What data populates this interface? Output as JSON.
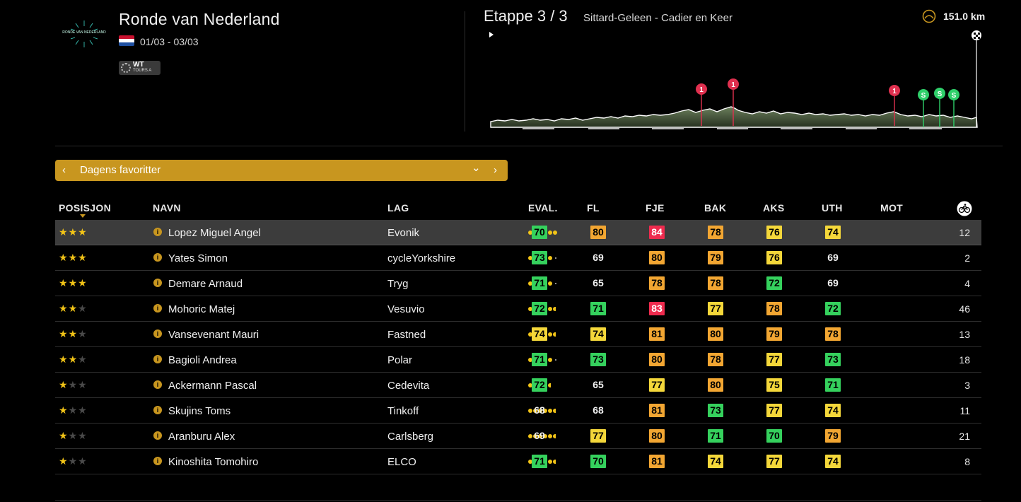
{
  "header": {
    "race_title": "Ronde van Nederland",
    "logo_text": "RONDE VAN NEDERLAND",
    "dates": "01/03 - 03/03",
    "badge_line1": "WT",
    "badge_line2": "TOURS A",
    "stage_label": "Etappe 3 / 3",
    "stage_route": "Sittard-Geleen - Cadier en Keer",
    "distance": "151.0 km"
  },
  "profile_markers": [
    {
      "type": "climb",
      "label": "1"
    },
    {
      "type": "climb",
      "label": "1"
    },
    {
      "type": "climb",
      "label": "1"
    },
    {
      "type": "sprint",
      "label": "S"
    },
    {
      "type": "sprint",
      "label": "S"
    },
    {
      "type": "sprint",
      "label": "S"
    }
  ],
  "selector": {
    "label": "Dagens favoritter",
    "prev": "‹",
    "next": "›",
    "dropdown": "⌄"
  },
  "columns": {
    "pos": "POSISJON",
    "name": "NAVN",
    "team": "LAG",
    "eval": "EVAL.",
    "fl": "FL",
    "fje": "FJE",
    "bak": "BAK",
    "aks": "AKS",
    "uth": "UTH",
    "mot": "MOT"
  },
  "colors": {
    "green": "#35d15d",
    "yellow": "#f4d73a",
    "orange": "#f2a632",
    "red": "#ee2b4e",
    "gold": "#c8961f"
  },
  "riders": [
    {
      "stars": 3,
      "name": "Lopez Miguel Angel",
      "team": "Evonik",
      "eval": 6,
      "stats": [
        70,
        80,
        84,
        78,
        76,
        74
      ],
      "colors": [
        "green",
        "orange",
        "red",
        "orange",
        "yellow",
        "yellow"
      ],
      "count": "12",
      "selected": true
    },
    {
      "stars": 3,
      "name": "Yates Simon",
      "team": "cycleYorkshire",
      "eval": 5,
      "stats": [
        73,
        69,
        80,
        79,
        76,
        69
      ],
      "colors": [
        "green",
        "none",
        "orange",
        "orange",
        "yellow",
        "none"
      ],
      "count": "2"
    },
    {
      "stars": 3,
      "name": "Demare Arnaud",
      "team": "Tryg",
      "eval": 5,
      "stats": [
        71,
        65,
        78,
        78,
        72,
        69
      ],
      "colors": [
        "green",
        "none",
        "orange",
        "orange",
        "green",
        "none"
      ],
      "count": "4"
    },
    {
      "stars": 2,
      "name": "Mohoric Matej",
      "team": "Vesuvio",
      "eval": 5.5,
      "stats": [
        72,
        71,
        83,
        77,
        78,
        72
      ],
      "colors": [
        "green",
        "green",
        "red",
        "yellow",
        "orange",
        "green"
      ],
      "count": "46"
    },
    {
      "stars": 2,
      "name": "Vansevenant Mauri",
      "team": "Fastned",
      "eval": 5.5,
      "stats": [
        74,
        74,
        81,
        80,
        79,
        78
      ],
      "colors": [
        "yellow",
        "yellow",
        "orange",
        "orange",
        "orange",
        "orange"
      ],
      "count": "13"
    },
    {
      "stars": 2,
      "name": "Bagioli Andrea",
      "team": "Polar",
      "eval": 5,
      "stats": [
        71,
        73,
        80,
        78,
        77,
        73
      ],
      "colors": [
        "green",
        "green",
        "orange",
        "orange",
        "yellow",
        "green"
      ],
      "count": "18"
    },
    {
      "stars": 1,
      "name": "Ackermann Pascal",
      "team": "Cedevita",
      "eval": 4.5,
      "stats": [
        72,
        65,
        77,
        80,
        75,
        71
      ],
      "colors": [
        "green",
        "none",
        "yellow",
        "orange",
        "yellow",
        "green"
      ],
      "count": "3"
    },
    {
      "stars": 1,
      "name": "Skujins Toms",
      "team": "Tinkoff",
      "eval": 5.5,
      "stats": [
        68,
        68,
        81,
        73,
        77,
        74
      ],
      "colors": [
        "none",
        "none",
        "orange",
        "green",
        "yellow",
        "yellow"
      ],
      "count": "11"
    },
    {
      "stars": 1,
      "name": "Aranburu Alex",
      "team": "Carlsberg",
      "eval": 5.5,
      "stats": [
        69,
        77,
        80,
        71,
        70,
        79
      ],
      "colors": [
        "none",
        "yellow",
        "orange",
        "green",
        "green",
        "orange"
      ],
      "count": "21"
    },
    {
      "stars": 1,
      "name": "Kinoshita Tomohiro",
      "team": "ELCO",
      "eval": 5.5,
      "stats": [
        71,
        70,
        81,
        74,
        77,
        74
      ],
      "colors": [
        "green",
        "green",
        "orange",
        "yellow",
        "yellow",
        "yellow"
      ],
      "count": "8"
    }
  ]
}
